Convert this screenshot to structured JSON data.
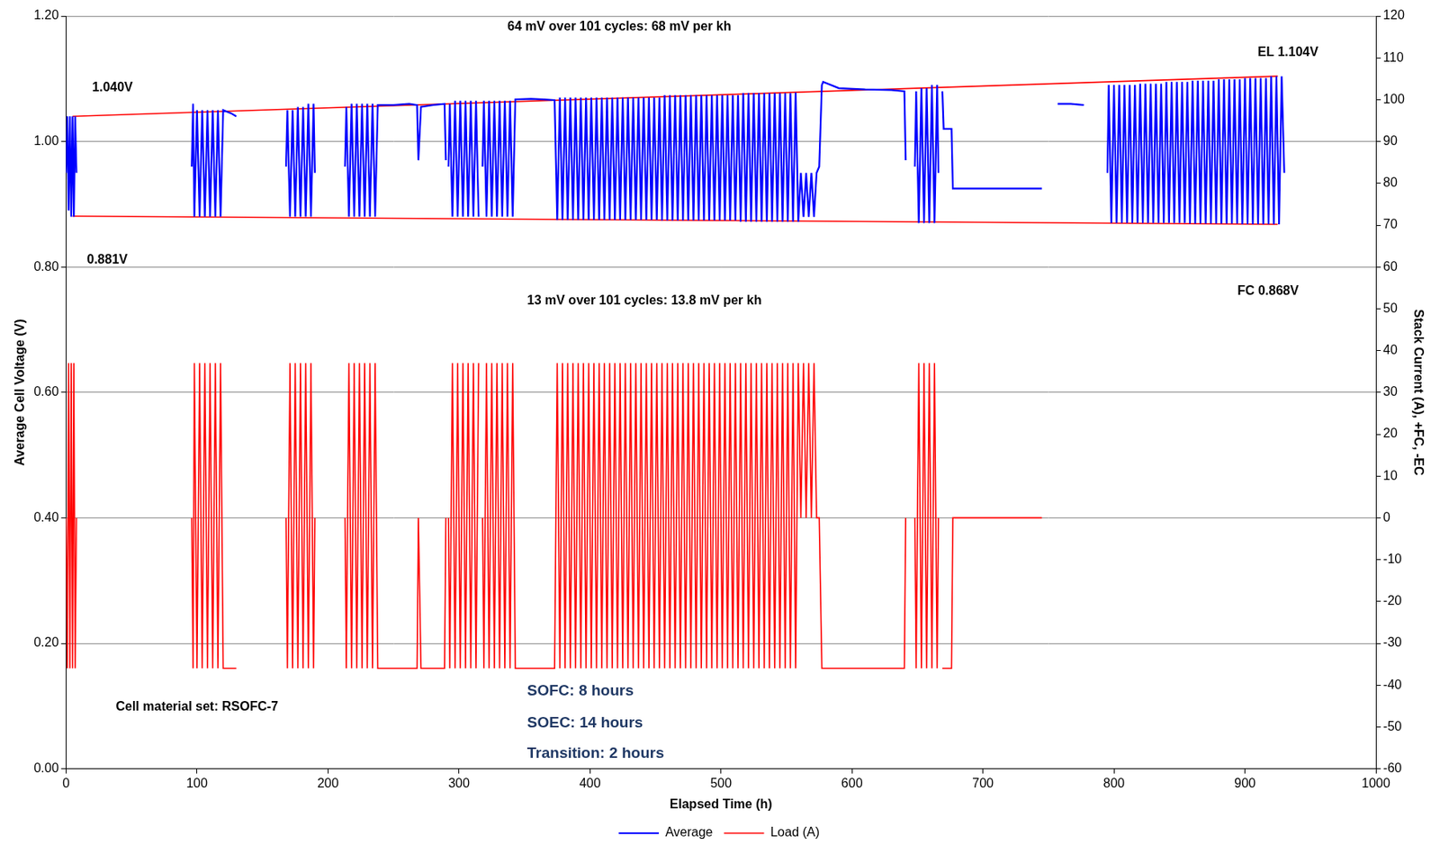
{
  "chart_data": {
    "type": "line",
    "x_label": "Elapsed Time (h)",
    "y_label": "Average Cell Voltage (V)",
    "y2_label": "Stack Current (A), +FC, -EC",
    "xlim": [
      0,
      1000
    ],
    "xticks": [
      0,
      100,
      200,
      300,
      400,
      500,
      600,
      700,
      800,
      900,
      1000
    ],
    "ylim": [
      0,
      1.2
    ],
    "yticks": [
      {
        "value": 0,
        "label": "0.00"
      },
      {
        "value": 0.2,
        "label": "0.20"
      },
      {
        "value": 0.4,
        "label": "0.40"
      },
      {
        "value": 0.6,
        "label": "0.60"
      },
      {
        "value": 0.8,
        "label": "0.80"
      },
      {
        "value": 1.0,
        "label": "1.00"
      },
      {
        "value": 1.2,
        "label": "1.20"
      }
    ],
    "y2lim": [
      -60,
      120
    ],
    "y2ticks": [
      -60,
      -50,
      -40,
      -30,
      -20,
      -10,
      0,
      10,
      20,
      30,
      40,
      50,
      60,
      70,
      80,
      90,
      100,
      110,
      120
    ],
    "grid": true,
    "legend": "bottom",
    "x": [
      0,
      1,
      2,
      3,
      4,
      5,
      6,
      7,
      8,
      9,
      96,
      97,
      98,
      100,
      102,
      104,
      106,
      108,
      110,
      112,
      114,
      116,
      118,
      120,
      126,
      130,
      131,
      168,
      169,
      171,
      173,
      175,
      177,
      179,
      181,
      183,
      185,
      187,
      189,
      190,
      191,
      213,
      214,
      216,
      218,
      220,
      222,
      224,
      226,
      228,
      230,
      232,
      234,
      236,
      238,
      250,
      262,
      268,
      269,
      271,
      280,
      289,
      290,
      291,
      292,
      293,
      295,
      297,
      299,
      301,
      303,
      305,
      307,
      309,
      311,
      313,
      315,
      316,
      318,
      319,
      321,
      323,
      325,
      327,
      329,
      331,
      333,
      335,
      337,
      339,
      341,
      343,
      355,
      365,
      373,
      375,
      377,
      379,
      381,
      383,
      385,
      387,
      389,
      391,
      393,
      395,
      397,
      399,
      401,
      403,
      405,
      407,
      409,
      411,
      413,
      415,
      417,
      419,
      421,
      423,
      425,
      427,
      429,
      431,
      433,
      435,
      437,
      439,
      441,
      443,
      445,
      447,
      449,
      451,
      453,
      455,
      457,
      459,
      461,
      463,
      465,
      467,
      469,
      471,
      473,
      475,
      477,
      479,
      481,
      483,
      485,
      487,
      489,
      491,
      493,
      495,
      497,
      499,
      501,
      503,
      505,
      507,
      509,
      511,
      513,
      515,
      517,
      519,
      521,
      523,
      525,
      527,
      529,
      531,
      533,
      535,
      537,
      539,
      541,
      543,
      545,
      547,
      549,
      551,
      553,
      555,
      557,
      559,
      561,
      563,
      565,
      567,
      569,
      571,
      573,
      575,
      577,
      578,
      590,
      610,
      630,
      640,
      641,
      642,
      648,
      649,
      651,
      653,
      655,
      657,
      659,
      661,
      663,
      665,
      666,
      667,
      669,
      670,
      676,
      677,
      678,
      690,
      710,
      730,
      745,
      746,
      757,
      767,
      777,
      778,
      795,
      796,
      798,
      800,
      802,
      804,
      806,
      808,
      810,
      812,
      814,
      816,
      818,
      820,
      822,
      824,
      826,
      828,
      830,
      832,
      834,
      836,
      838,
      840,
      842,
      844,
      846,
      848,
      850,
      852,
      854,
      856,
      858,
      860,
      862,
      864,
      866,
      868,
      870,
      872,
      874,
      876,
      878,
      880,
      882,
      884,
      886,
      888,
      890,
      892,
      894,
      896,
      898,
      900,
      902,
      904,
      906,
      908,
      910,
      912,
      914,
      916,
      918,
      920,
      922,
      924,
      926,
      928,
      930
    ],
    "series": [
      {
        "name": "Average",
        "color": "#0000ff",
        "axis": "y",
        "values": [
          0.95,
          1.04,
          0.89,
          1.04,
          0.88,
          1.04,
          0.88,
          1.04,
          0.95,
          null,
          0.96,
          1.06,
          0.88,
          1.05,
          0.88,
          1.05,
          0.88,
          1.05,
          0.88,
          1.05,
          0.88,
          1.05,
          0.88,
          1.05,
          1.045,
          1.04,
          null,
          0.96,
          1.05,
          0.88,
          1.05,
          0.88,
          1.055,
          0.88,
          1.055,
          0.88,
          1.06,
          0.88,
          1.06,
          0.95,
          null,
          0.96,
          1.055,
          0.88,
          1.06,
          0.88,
          1.06,
          0.88,
          1.06,
          0.88,
          1.06,
          0.88,
          1.06,
          0.88,
          1.058,
          1.058,
          1.06,
          1.058,
          0.97,
          1.055,
          1.058,
          1.06,
          0.97,
          null,
          0.96,
          1.06,
          0.88,
          1.065,
          0.88,
          1.065,
          0.88,
          1.065,
          0.88,
          1.065,
          0.88,
          1.065,
          0.88,
          null,
          0.96,
          1.065,
          0.88,
          1.065,
          0.88,
          1.065,
          0.88,
          1.065,
          0.88,
          1.065,
          0.88,
          1.065,
          0.88,
          1.067,
          1.068,
          1.067,
          1.066,
          0.875,
          1.07,
          0.875,
          1.07,
          0.875,
          1.07,
          0.875,
          1.07,
          0.875,
          1.07,
          0.875,
          1.07,
          0.875,
          1.07,
          0.875,
          1.07,
          0.875,
          1.07,
          0.875,
          1.07,
          0.875,
          1.07,
          0.875,
          1.07,
          0.875,
          1.07,
          0.875,
          1.07,
          0.875,
          1.07,
          0.875,
          1.07,
          0.875,
          1.07,
          0.875,
          1.07,
          0.875,
          1.07,
          0.875,
          1.07,
          0.874,
          1.074,
          0.874,
          1.074,
          0.874,
          1.074,
          0.874,
          1.074,
          0.874,
          1.074,
          0.874,
          1.074,
          0.874,
          1.074,
          0.874,
          1.074,
          0.874,
          1.074,
          0.874,
          1.074,
          0.874,
          1.074,
          0.874,
          1.074,
          0.874,
          1.074,
          0.874,
          1.074,
          0.874,
          1.074,
          0.872,
          1.077,
          0.872,
          1.077,
          0.872,
          1.077,
          0.872,
          1.077,
          0.872,
          1.077,
          0.872,
          1.077,
          0.872,
          1.077,
          0.872,
          1.077,
          0.872,
          1.077,
          0.872,
          1.077,
          0.872,
          1.078,
          0.872,
          0.95,
          0.88,
          0.95,
          0.88,
          0.95,
          0.88,
          0.95,
          0.96,
          1.09,
          1.095,
          1.085,
          1.083,
          1.082,
          1.08,
          0.97,
          null,
          0.96,
          1.08,
          0.87,
          1.085,
          0.87,
          1.085,
          0.87,
          1.09,
          0.87,
          1.09,
          0.95,
          null,
          1.08,
          1.02,
          1.02,
          0.925,
          0.925,
          0.925,
          0.925,
          0.925,
          0.925,
          null,
          1.06,
          1.06,
          1.058,
          null,
          0.95,
          1.09,
          0.87,
          1.09,
          0.87,
          1.09,
          0.87,
          1.09,
          0.87,
          1.09,
          0.87,
          1.09,
          0.87,
          1.092,
          0.87,
          1.092,
          0.87,
          1.092,
          0.87,
          1.092,
          0.87,
          1.092,
          0.87,
          1.095,
          0.87,
          1.095,
          0.87,
          1.095,
          0.87,
          1.095,
          0.87,
          1.095,
          0.869,
          1.097,
          0.869,
          1.097,
          0.869,
          1.097,
          0.869,
          1.097,
          0.869,
          1.097,
          0.869,
          1.099,
          0.869,
          1.099,
          0.869,
          1.099,
          0.869,
          1.099,
          0.869,
          1.099,
          0.868,
          1.101,
          0.868,
          1.101,
          0.868,
          1.101,
          0.868,
          1.101,
          0.868,
          1.101,
          0.868,
          1.104,
          0.868,
          1.104,
          0.868,
          1.104,
          0.95
        ]
      },
      {
        "name": "Load (A)",
        "color": "#ff0000",
        "axis": "y2",
        "values": [
          0,
          -36,
          37,
          -36,
          37,
          -36,
          37,
          -36,
          0,
          null,
          0,
          -36,
          37,
          -36,
          37,
          -36,
          37,
          -36,
          37,
          -36,
          37,
          -36,
          37,
          -36,
          -36,
          -36,
          null,
          0,
          -36,
          37,
          -36,
          37,
          -36,
          37,
          -36,
          37,
          -36,
          37,
          -36,
          0,
          null,
          0,
          -36,
          37,
          -36,
          37,
          -36,
          37,
          -36,
          37,
          -36,
          37,
          -36,
          37,
          -36,
          -36,
          -36,
          -36,
          0,
          -36,
          -36,
          -36,
          0,
          null,
          0,
          -36,
          37,
          -36,
          37,
          -36,
          37,
          -36,
          37,
          -36,
          37,
          -36,
          37,
          null,
          0,
          -36,
          37,
          -36,
          37,
          -36,
          37,
          -36,
          37,
          -36,
          37,
          -36,
          37,
          -36,
          -36,
          -36,
          -36,
          37,
          -36,
          37,
          -36,
          37,
          -36,
          37,
          -36,
          37,
          -36,
          37,
          -36,
          37,
          -36,
          37,
          -36,
          37,
          -36,
          37,
          -36,
          37,
          -36,
          37,
          -36,
          37,
          -36,
          37,
          -36,
          37,
          -36,
          37,
          -36,
          37,
          -36,
          37,
          -36,
          37,
          -36,
          37,
          -36,
          37,
          -36,
          37,
          -36,
          37,
          -36,
          37,
          -36,
          37,
          -36,
          37,
          -36,
          37,
          -36,
          37,
          -36,
          37,
          -36,
          37,
          -36,
          37,
          -36,
          37,
          -36,
          37,
          -36,
          37,
          -36,
          37,
          -36,
          37,
          -36,
          37,
          -36,
          37,
          -36,
          37,
          -36,
          37,
          -36,
          37,
          -36,
          37,
          -36,
          37,
          -36,
          37,
          -36,
          37,
          -36,
          37,
          -36,
          37,
          0,
          37,
          0,
          37,
          0,
          37,
          0,
          0,
          -36,
          -36,
          -36,
          -36,
          -36,
          -36,
          0,
          null,
          0,
          -36,
          37,
          -36,
          37,
          -36,
          37,
          -36,
          37,
          -36,
          0,
          null,
          -36,
          -36,
          -36,
          0,
          0,
          0,
          0,
          0,
          0,
          null,
          null,
          null,
          null,
          null,
          null,
          null,
          null,
          null,
          null,
          null,
          null,
          null,
          null,
          null,
          null,
          null,
          null,
          null,
          null,
          null,
          null,
          null,
          null,
          null,
          null,
          null,
          null,
          null,
          null,
          null,
          null,
          null,
          null,
          null,
          null,
          null,
          null,
          null,
          null,
          null,
          null,
          null,
          null,
          null,
          null,
          null,
          null,
          null,
          null,
          null,
          null,
          null,
          null,
          null,
          null,
          null,
          null,
          null,
          null,
          null,
          null,
          null,
          null,
          null,
          null,
          null,
          null,
          null,
          null,
          null,
          null,
          null,
          null
        ]
      }
    ],
    "trend_lines": [
      {
        "x": [
          5,
          925
        ],
        "values": [
          1.04,
          1.104
        ]
      },
      {
        "x": [
          5,
          925
        ],
        "values": [
          0.881,
          0.868
        ]
      }
    ],
    "annotations": [
      "64 mV over 101 cycles: 68 mV per kh",
      "1.040V",
      "EL 1.104V",
      "0.881V",
      "FC 0.868V",
      "13 mV over 101 cycles: 13.8 mV per kh",
      "Cell material set: RSOFC-7",
      "SOFC: 8 hours",
      "SOEC: 14 hours",
      "Transition: 2 hours"
    ]
  }
}
